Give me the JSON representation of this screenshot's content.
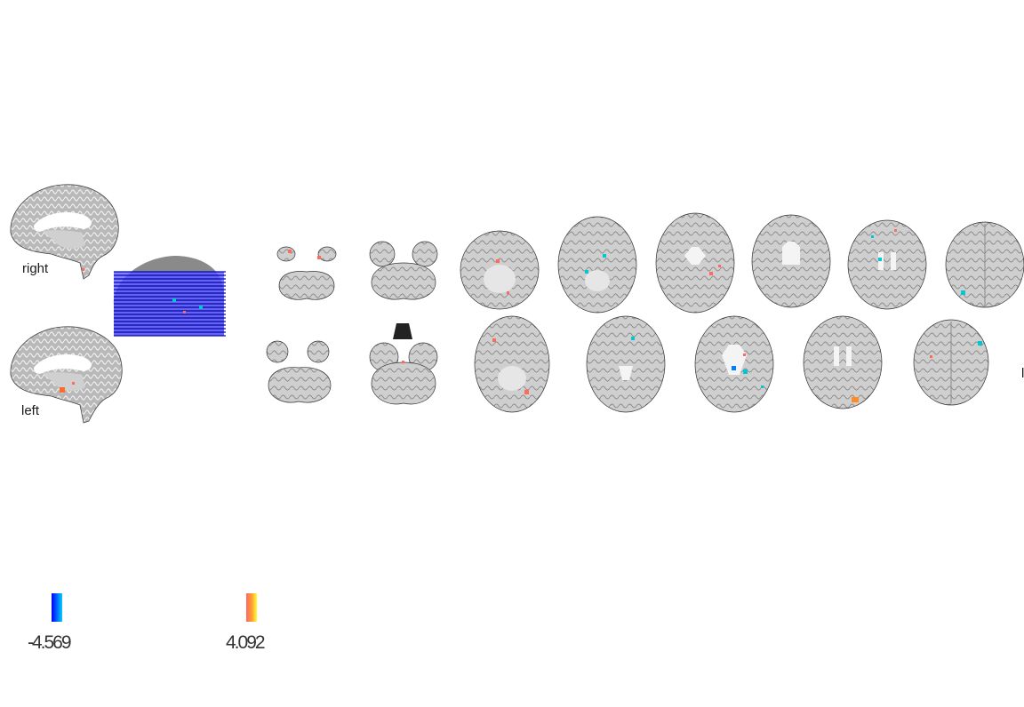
{
  "views": {
    "sagittal_right_label": "right",
    "sagittal_left_label": "left"
  },
  "colorbars": {
    "negative": {
      "label": "-4.569",
      "colors": [
        "#0000ff",
        "#0066ff",
        "#00ccff"
      ]
    },
    "positive": {
      "label": "4.092",
      "colors": [
        "#ff6666",
        "#ff9933",
        "#ffff33"
      ]
    }
  },
  "overlay_colors": {
    "positive_blob": "#ff6a5a",
    "negative_blob": "#00c8d0",
    "slice_lines": "#0000cc"
  },
  "edge_text": "l"
}
